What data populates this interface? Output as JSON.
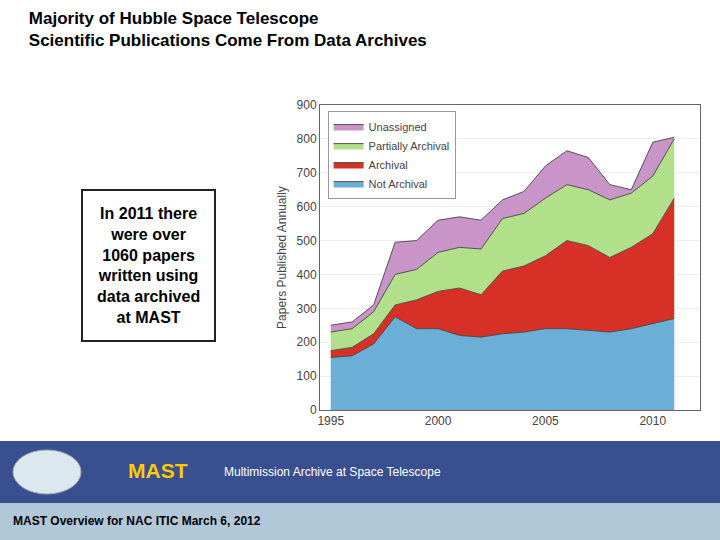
{
  "chart_data": {
    "type": "area",
    "stacked": true,
    "title": "Majority of Hubble Space Telescope\nScientific Publications Come From Data Archives",
    "y_label": "Papers Published Annually",
    "x": [
      1995,
      1996,
      1997,
      1998,
      1999,
      2000,
      2001,
      2002,
      2003,
      2004,
      2005,
      2006,
      2007,
      2008,
      2009,
      2010,
      2011
    ],
    "series": [
      {
        "name": "Not Archival",
        "color": "#6baed6",
        "values": [
          155,
          160,
          195,
          275,
          240,
          240,
          220,
          215,
          225,
          230,
          240,
          240,
          235,
          230,
          240,
          255,
          270
        ]
      },
      {
        "name": "Archival",
        "color": "#d73027",
        "values": [
          20,
          25,
          30,
          35,
          85,
          110,
          140,
          125,
          185,
          195,
          215,
          260,
          250,
          220,
          240,
          265,
          355
        ]
      },
      {
        "name": "Partially Archival",
        "color": "#b2df8a",
        "values": [
          55,
          55,
          65,
          90,
          90,
          115,
          120,
          135,
          155,
          155,
          170,
          165,
          165,
          170,
          160,
          170,
          175
        ]
      },
      {
        "name": "Unassigned",
        "color": "#c994c7",
        "values": [
          20,
          20,
          20,
          95,
          85,
          95,
          90,
          85,
          55,
          65,
          95,
          100,
          95,
          45,
          10,
          100,
          5
        ]
      }
    ],
    "xlim": [
      1994.5,
      2012.2
    ],
    "xticks": [
      1995,
      2000,
      2005,
      2010
    ],
    "ylim": [
      0,
      900
    ],
    "yticks": [
      0,
      100,
      200,
      300,
      400,
      500,
      600,
      700,
      800,
      900
    ],
    "grid": "y",
    "legend": "upper left",
    "annotations": [
      "In 2011 there\nwere over\n1060 papers\nwritten using\ndata archived\nat MAST",
      "MAST",
      "Multimission Archive at Space Telescope",
      "MAST Overview for NAC ITIC March 6, 2012"
    ]
  }
}
